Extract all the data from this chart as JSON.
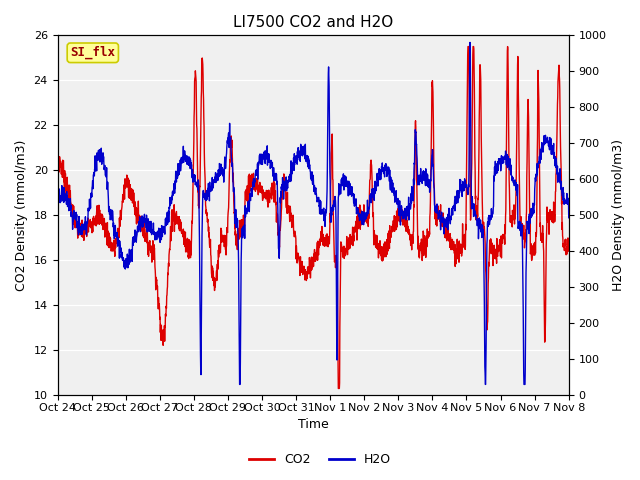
{
  "title": "LI7500 CO2 and H2O",
  "xlabel": "Time",
  "ylabel_left": "CO2 Density (mmol/m3)",
  "ylabel_right": "H2O Density (mmol/m3)",
  "ylim_left": [
    10,
    26
  ],
  "ylim_right": [
    0,
    1000
  ],
  "yticks_left": [
    10,
    12,
    14,
    16,
    18,
    20,
    22,
    24,
    26
  ],
  "yticks_right": [
    0,
    100,
    200,
    300,
    400,
    500,
    600,
    700,
    800,
    900,
    1000
  ],
  "xtick_labels": [
    "Oct 24",
    "Oct 25",
    "Oct 26",
    "Oct 27",
    "Oct 28",
    "Oct 29",
    "Oct 30",
    "Oct 31",
    "Nov 1",
    "Nov 2",
    "Nov 3",
    "Nov 4",
    "Nov 5",
    "Nov 6",
    "Nov 7",
    "Nov 8"
  ],
  "co2_color": "#dd0000",
  "h2o_color": "#0000cc",
  "legend_co2": "CO2",
  "legend_h2o": "H2O",
  "annotation_text": "SI_flx",
  "annotation_bg": "#ffff99",
  "annotation_border": "#cccc00",
  "bg_color": "#ebebeb",
  "plot_bg": "#f0f0f0",
  "title_fontsize": 11,
  "label_fontsize": 9,
  "tick_fontsize": 8,
  "legend_fontsize": 9,
  "line_width": 1.0,
  "seed": 7,
  "n_points": 2000
}
